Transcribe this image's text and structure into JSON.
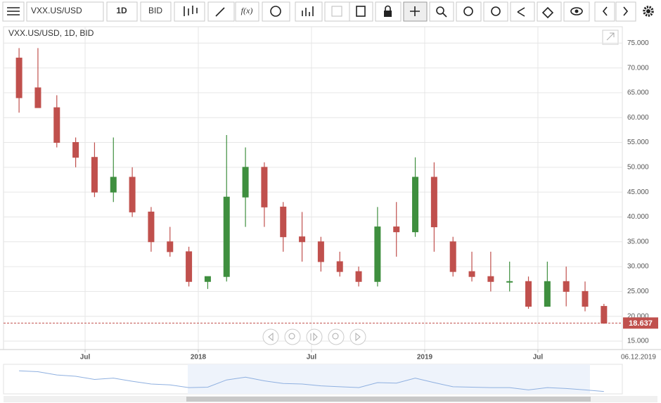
{
  "toolbar": {
    "symbol": "VXX.US/USD",
    "timeframe": "1D",
    "price_type": "BID"
  },
  "chart_data": {
    "type": "candlestick",
    "title": "VXX.US/USD, 1D, BID",
    "x": [
      "2017-03",
      "2017-04",
      "2017-05",
      "2017-06",
      "2017-07",
      "2017-08",
      "2017-09",
      "2017-10",
      "2017-11",
      "2017-12",
      "2018-01",
      "2018-02",
      "2018-03",
      "2018-04",
      "2018-05",
      "2018-06",
      "2018-07",
      "2018-08",
      "2018-09",
      "2018-10",
      "2018-11",
      "2018-12",
      "2019-01",
      "2019-02",
      "2019-03",
      "2019-04",
      "2019-05",
      "2019-06",
      "2019-07",
      "2019-08",
      "2019-09",
      "2019-10"
    ],
    "open": [
      72,
      66,
      62,
      55,
      52,
      45,
      48,
      41,
      35,
      33,
      27,
      28,
      44,
      50,
      42,
      36,
      35,
      31,
      29,
      27,
      38,
      37,
      48,
      35,
      29,
      28,
      27,
      27,
      22,
      27,
      25,
      22
    ],
    "high": [
      74,
      74,
      64.5,
      56,
      55,
      56,
      50,
      42,
      38,
      34,
      28,
      56.5,
      54,
      51,
      43,
      41,
      36,
      33,
      30,
      42,
      43,
      52,
      51,
      36,
      33,
      33,
      31,
      28,
      31,
      30,
      27,
      22.5
    ],
    "low": [
      61,
      62,
      54,
      50,
      44,
      43,
      40,
      33,
      32,
      26,
      25.5,
      27,
      38,
      38,
      33,
      31,
      29,
      28,
      26,
      26,
      32,
      36,
      33,
      28,
      27,
      25,
      25,
      21.5,
      22,
      22,
      21,
      18.5
    ],
    "close": [
      64,
      62,
      55,
      52,
      45,
      48,
      41,
      35,
      33,
      27,
      28,
      44,
      50,
      42,
      36,
      35,
      31,
      29,
      27,
      38,
      37,
      48,
      38,
      29,
      28,
      27,
      27,
      22,
      27,
      25,
      22,
      18.6
    ],
    "up_color": "#3f8f3f",
    "down_color": "#c0504d",
    "ylim": [
      13.3,
      78.3
    ],
    "yticks": [
      {
        "value": 15,
        "label": "15.000"
      },
      {
        "value": 20,
        "label": "20.000"
      },
      {
        "value": 25,
        "label": "25.000"
      },
      {
        "value": 30,
        "label": "30.000"
      },
      {
        "value": 35,
        "label": "35.000"
      },
      {
        "value": 40,
        "label": "40.000"
      },
      {
        "value": 45,
        "label": "45.000"
      },
      {
        "value": 50,
        "label": "50.000"
      },
      {
        "value": 55,
        "label": "55.000"
      },
      {
        "value": 60,
        "label": "60.000"
      },
      {
        "value": 65,
        "label": "65.000"
      },
      {
        "value": 70,
        "label": "70.000"
      },
      {
        "value": 75,
        "label": "75.000"
      }
    ],
    "xticks": [
      {
        "value": "2017-07",
        "label": "Jul"
      },
      {
        "value": "2018-01",
        "label": "2018"
      },
      {
        "value": "2018-07",
        "label": "Jul"
      },
      {
        "value": "2019-01",
        "label": "2019"
      },
      {
        "value": "2019-07",
        "label": "Jul"
      }
    ],
    "grid": true,
    "last_price": 18.637,
    "last_date": "06.12.2019"
  }
}
